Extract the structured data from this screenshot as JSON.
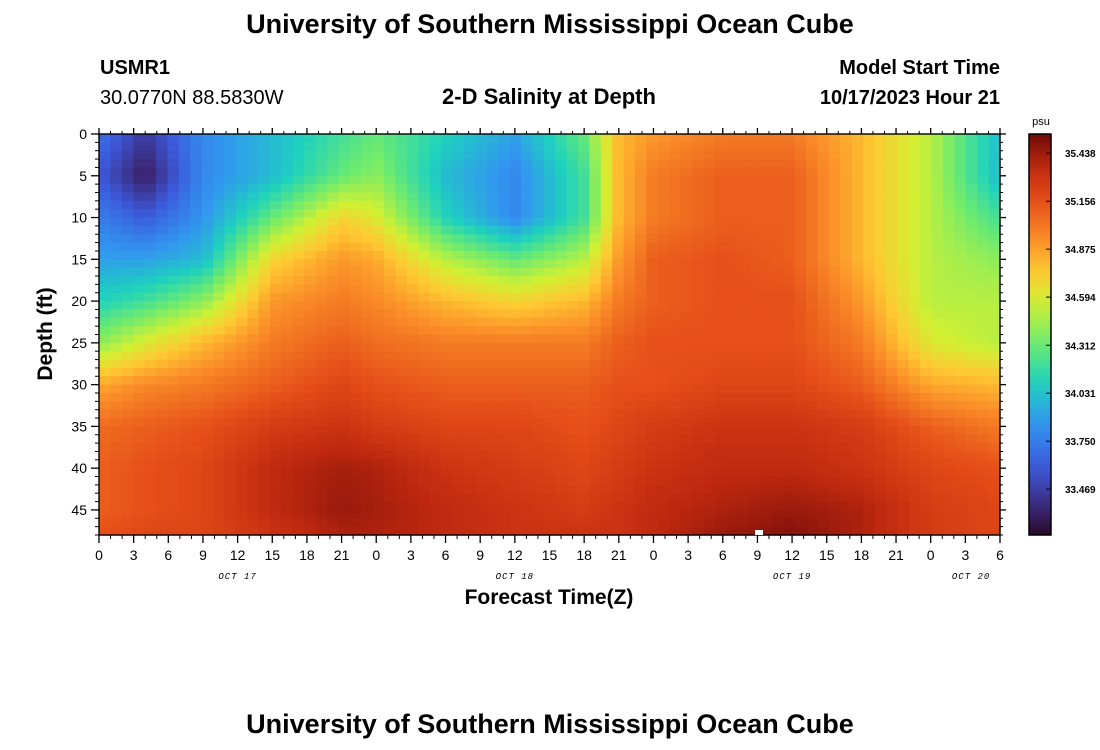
{
  "page": {
    "title_top": "University of Southern Mississippi Ocean Cube",
    "title_bottom": "University of Southern Mississippi Ocean Cube",
    "station_id": "USMR1",
    "station_coords": "30.0770N  88.5830W",
    "chart_heading": "2-D Salinity at Depth",
    "model_start_label": "Model Start Time",
    "model_start_value": "10/17/2023 Hour 21"
  },
  "chart_data": {
    "type": "heatmap",
    "title": "2-D Salinity at Depth",
    "xlabel": "Forecast Time(Z)",
    "ylabel": "Depth (ft)",
    "x_hours_range": [
      0,
      78
    ],
    "x_ticks": [
      {
        "h": 0,
        "label": "0"
      },
      {
        "h": 3,
        "label": "3"
      },
      {
        "h": 6,
        "label": "6"
      },
      {
        "h": 9,
        "label": "9"
      },
      {
        "h": 12,
        "label": "12"
      },
      {
        "h": 15,
        "label": "15"
      },
      {
        "h": 18,
        "label": "18"
      },
      {
        "h": 21,
        "label": "21"
      },
      {
        "h": 24,
        "label": "0"
      },
      {
        "h": 27,
        "label": "3"
      },
      {
        "h": 30,
        "label": "6"
      },
      {
        "h": 33,
        "label": "9"
      },
      {
        "h": 36,
        "label": "12"
      },
      {
        "h": 39,
        "label": "15"
      },
      {
        "h": 42,
        "label": "18"
      },
      {
        "h": 45,
        "label": "21"
      },
      {
        "h": 48,
        "label": "0"
      },
      {
        "h": 51,
        "label": "3"
      },
      {
        "h": 54,
        "label": "6"
      },
      {
        "h": 57,
        "label": "9"
      },
      {
        "h": 60,
        "label": "12"
      },
      {
        "h": 63,
        "label": "15"
      },
      {
        "h": 66,
        "label": "18"
      },
      {
        "h": 69,
        "label": "21"
      },
      {
        "h": 72,
        "label": "0"
      },
      {
        "h": 75,
        "label": "3"
      },
      {
        "h": 78,
        "label": "6"
      }
    ],
    "date_labels": [
      {
        "h": 12,
        "label": "OCT 17"
      },
      {
        "h": 36,
        "label": "OCT 18"
      },
      {
        "h": 60,
        "label": "OCT 19"
      },
      {
        "h": 75.5,
        "label": "OCT 20"
      }
    ],
    "y_range": [
      0,
      48
    ],
    "y_ticks": [
      0,
      5,
      10,
      15,
      20,
      25,
      30,
      35,
      40,
      45
    ],
    "colorbar": {
      "unit": "psu",
      "min": 33.2,
      "max": 35.55,
      "ticks": [
        "35.438",
        "35.156",
        "34.875",
        "34.594",
        "34.312",
        "34.031",
        "33.750",
        "33.469"
      ]
    },
    "field_sample": {
      "times_h": [
        0,
        4,
        9,
        15,
        21,
        24,
        30,
        36,
        42,
        45,
        48,
        54,
        60,
        66,
        72,
        78
      ],
      "depths_ft": [
        0,
        5,
        10,
        15,
        20,
        25,
        30,
        35,
        40,
        45,
        48
      ],
      "salinity_psu": [
        [
          33.7,
          33.45,
          33.8,
          34.0,
          34.2,
          34.3,
          34.1,
          33.9,
          34.3,
          34.8,
          34.9,
          35.0,
          35.0,
          34.8,
          34.5,
          34.0
        ],
        [
          33.6,
          33.3,
          33.8,
          34.0,
          34.3,
          34.4,
          34.0,
          33.8,
          34.2,
          34.8,
          35.0,
          35.1,
          35.1,
          34.8,
          34.5,
          34.0
        ],
        [
          33.75,
          33.6,
          33.85,
          34.3,
          34.7,
          34.6,
          34.1,
          33.8,
          34.2,
          34.8,
          35.0,
          35.1,
          35.1,
          34.8,
          34.5,
          34.2
        ],
        [
          33.9,
          33.9,
          34.0,
          34.7,
          34.9,
          34.85,
          34.5,
          34.3,
          34.5,
          34.9,
          35.1,
          35.15,
          35.1,
          34.8,
          34.5,
          34.4
        ],
        [
          34.1,
          34.2,
          34.4,
          34.9,
          35.0,
          34.95,
          34.8,
          34.7,
          34.8,
          35.0,
          35.1,
          35.15,
          35.15,
          34.9,
          34.5,
          34.5
        ],
        [
          34.4,
          34.6,
          34.8,
          35.0,
          35.1,
          35.05,
          35.0,
          35.0,
          35.0,
          35.1,
          35.15,
          35.15,
          35.15,
          35.0,
          34.6,
          34.5
        ],
        [
          34.85,
          34.95,
          35.0,
          35.1,
          35.2,
          35.15,
          35.1,
          35.1,
          35.1,
          35.15,
          35.15,
          35.2,
          35.2,
          35.1,
          34.85,
          34.8
        ],
        [
          35.05,
          35.1,
          35.15,
          35.25,
          35.3,
          35.25,
          35.2,
          35.2,
          35.15,
          35.2,
          35.25,
          35.3,
          35.3,
          35.25,
          35.1,
          35.0
        ],
        [
          35.1,
          35.15,
          35.2,
          35.35,
          35.42,
          35.4,
          35.3,
          35.25,
          35.2,
          35.25,
          35.3,
          35.35,
          35.35,
          35.3,
          35.2,
          35.15
        ],
        [
          35.1,
          35.15,
          35.2,
          35.35,
          35.45,
          35.42,
          35.35,
          35.3,
          35.25,
          35.3,
          35.35,
          35.4,
          35.45,
          35.4,
          35.25,
          35.2
        ],
        [
          35.15,
          35.2,
          35.2,
          35.3,
          35.4,
          35.4,
          35.35,
          35.3,
          35.3,
          35.3,
          35.35,
          35.45,
          35.5,
          35.4,
          35.25,
          35.2
        ]
      ]
    }
  }
}
